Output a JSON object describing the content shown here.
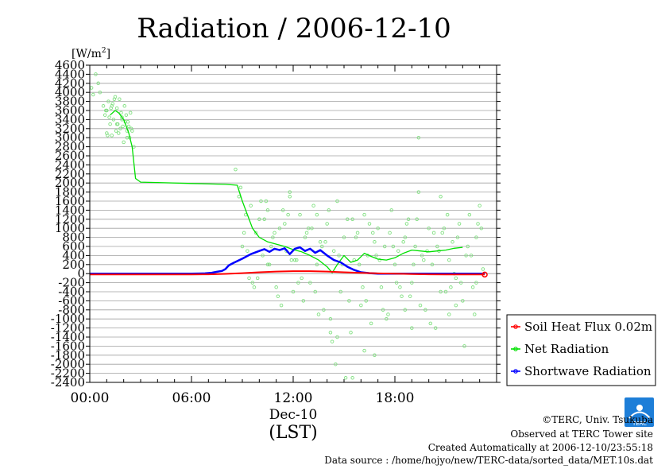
{
  "chart_data": {
    "type": "line",
    "title": "Radiation / 2006-12-10",
    "ylabel": "[W/m",
    "ylabel_sup": "2",
    "ylabel_close": "]",
    "ylim": [
      -2400,
      4600
    ],
    "yticks": [
      4600,
      4400,
      4200,
      4000,
      3800,
      3600,
      3400,
      3200,
      3000,
      2800,
      2600,
      2400,
      2200,
      2000,
      1800,
      1600,
      1400,
      1200,
      1000,
      800,
      600,
      400,
      200,
      0,
      -200,
      -400,
      -600,
      -800,
      -1000,
      -1200,
      -1400,
      -1600,
      -1800,
      -2000,
      -2200,
      -2400
    ],
    "ytick_labels": [
      "4600",
      "4400",
      "4200",
      "4000",
      "3800",
      "3600",
      "3400",
      "3200",
      "3000",
      "2800",
      "2600",
      "2400",
      "2200",
      "2000",
      "1800",
      "1600",
      "1400",
      "1200",
      "1000",
      "800",
      "600",
      "400",
      "200",
      "0",
      "-200",
      "-400",
      "-600",
      "-800",
      "-1000",
      "-1200",
      "-1400",
      "-1600",
      "-1800",
      "-2000",
      "-2200",
      "-2400"
    ],
    "xlim": [
      0,
      24
    ],
    "xticks": [
      0,
      6,
      12,
      18
    ],
    "xtick_labels": [
      "00:00",
      "06:00",
      "12:00",
      "18:00"
    ],
    "xdate_label": "Dec-10",
    "xlabel": "(LST)",
    "grid": true,
    "legend_position": "right",
    "series": [
      {
        "name": "Soil Heat Flux 0.02m",
        "color": "#ff0000",
        "x": [
          0,
          2,
          4,
          6,
          7,
          8,
          9,
          10,
          11,
          12,
          13,
          14,
          15,
          16,
          17,
          18,
          19,
          20,
          21,
          22,
          23,
          23.3
        ],
        "y": [
          -20,
          -20,
          -20,
          -20,
          -15,
          -5,
          10,
          30,
          45,
          55,
          55,
          45,
          30,
          15,
          5,
          0,
          -10,
          -15,
          -20,
          -20,
          -20,
          -20
        ]
      },
      {
        "name": "Net Radiation",
        "color": "#00e000",
        "x": [
          1.2,
          1.5,
          1.7,
          2.0,
          2.3,
          2.5,
          2.7,
          3.0,
          4.0,
          6.0,
          8.0,
          8.7,
          9.0,
          9.3,
          9.6,
          10.0,
          10.5,
          11.0,
          11.5,
          12.0,
          12.5,
          13.0,
          13.5,
          14.0,
          14.3,
          14.6,
          15.0,
          15.4,
          15.8,
          16.2,
          16.6,
          17.0,
          17.5,
          18.0,
          18.5,
          19.0,
          19.5,
          20.0,
          20.5,
          21.0,
          21.5,
          22.0
        ],
        "y": [
          3500,
          3600,
          3550,
          3400,
          3100,
          2800,
          2100,
          2020,
          2010,
          1990,
          1970,
          1950,
          1600,
          1300,
          1000,
          800,
          700,
          650,
          600,
          530,
          480,
          400,
          300,
          150,
          20,
          200,
          400,
          250,
          300,
          450,
          380,
          320,
          300,
          350,
          450,
          520,
          500,
          480,
          500,
          520,
          560,
          580
        ]
      },
      {
        "name": "Shortwave Radiation",
        "color": "#0000ff",
        "x": [
          0,
          6,
          6.8,
          7.2,
          7.5,
          7.8,
          8.0,
          8.2,
          8.5,
          9.0,
          9.5,
          10.0,
          10.3,
          10.6,
          10.9,
          11.2,
          11.5,
          11.8,
          12.1,
          12.4,
          12.7,
          13.0,
          13.3,
          13.6,
          14.0,
          14.4,
          14.8,
          15.2,
          15.6,
          16.0,
          16.5,
          17.0,
          18.0,
          20.0,
          22.0,
          23.3
        ],
        "y": [
          0,
          0,
          5,
          20,
          40,
          60,
          100,
          180,
          240,
          330,
          430,
          500,
          540,
          480,
          550,
          520,
          560,
          430,
          550,
          580,
          500,
          550,
          460,
          520,
          400,
          300,
          250,
          150,
          80,
          30,
          10,
          0,
          0,
          0,
          0,
          0
        ]
      }
    ],
    "scatter_note": "",
    "scatter": {
      "color": "#80e080",
      "x": [
        0.1,
        0.2,
        0.35,
        0.5,
        0.6,
        0.8,
        0.9,
        1.0,
        1.1,
        1.2,
        1.3,
        1.4,
        1.5,
        1.6,
        1.7,
        1.8,
        1.9,
        2.0,
        2.1,
        2.2,
        2.3,
        2.4,
        2.5,
        2.6,
        1.05,
        1.25,
        1.45,
        1.65,
        1.85,
        2.05,
        2.25,
        2.45,
        0.95,
        1.15,
        1.35,
        1.55,
        1.75,
        1.95,
        2.15,
        2.35,
        1.0,
        1.3,
        1.6,
        1.9,
        2.2,
        8.6,
        8.8,
        9.0,
        9.2,
        9.4,
        9.6,
        9.8,
        10.0,
        10.2,
        10.4,
        10.6,
        10.8,
        11.0,
        11.2,
        11.4,
        11.6,
        11.8,
        12.0,
        12.2,
        12.4,
        12.6,
        12.8,
        13.0,
        13.2,
        13.4,
        13.6,
        13.8,
        14.0,
        14.2,
        14.4,
        14.6,
        14.8,
        15.0,
        15.2,
        15.4,
        15.6,
        15.8,
        16.0,
        16.2,
        16.4,
        16.6,
        16.8,
        17.0,
        17.2,
        17.4,
        17.6,
        17.8,
        18.0,
        18.2,
        18.4,
        18.6,
        18.8,
        19.0,
        19.2,
        19.4,
        19.6,
        19.8,
        20.0,
        20.2,
        20.4,
        20.6,
        20.8,
        21.0,
        21.2,
        21.4,
        21.6,
        21.8,
        22.0,
        22.2,
        22.4,
        22.6,
        22.8,
        23.0,
        23.2,
        9.1,
        9.5,
        9.9,
        10.3,
        10.7,
        11.1,
        11.5,
        11.9,
        12.3,
        12.7,
        13.1,
        13.5,
        13.9,
        14.3,
        14.7,
        15.1,
        15.5,
        15.9,
        16.3,
        16.7,
        17.1,
        17.5,
        17.9,
        18.3,
        18.7,
        19.1,
        19.5,
        19.9,
        20.3,
        20.7,
        21.1,
        21.5,
        21.9,
        22.3,
        22.7,
        23.1,
        9.3,
        9.7,
        10.1,
        10.5,
        10.9,
        11.3,
        11.7,
        12.1,
        12.5,
        12.9,
        13.3,
        13.7,
        14.1,
        14.5,
        14.9,
        15.3,
        15.7,
        16.1,
        16.5,
        16.9,
        17.3,
        17.7,
        18.1,
        18.5,
        18.9,
        19.3,
        19.7,
        20.1,
        20.5,
        20.9,
        21.3,
        21.7,
        22.1,
        22.5,
        22.9,
        8.9,
        10.5,
        11.8,
        13.4,
        14.6,
        15.5,
        16.8,
        18.6,
        19.4,
        20.7,
        21.6,
        22.8,
        14.2,
        16.2,
        19.0,
        21.2
      ],
      "y": [
        4100,
        3950,
        4400,
        4200,
        4000,
        3700,
        3500,
        3600,
        3800,
        3300,
        3700,
        3400,
        3900,
        3650,
        3100,
        3200,
        3450,
        2900,
        3350,
        3000,
        3250,
        3550,
        3150,
        2800,
        3050,
        3650,
        3850,
        3300,
        3550,
        3700,
        3350,
        3200,
        3600,
        3450,
        3750,
        3150,
        3850,
        3250,
        3500,
        3000,
        3100,
        3050,
        3300,
        3400,
        3150,
        2300,
        1700,
        600,
        1300,
        -100,
        -200,
        900,
        1200,
        400,
        1600,
        200,
        800,
        -300,
        1000,
        1400,
        500,
        1700,
        -400,
        300,
        1300,
        -600,
        900,
        -200,
        1500,
        200,
        700,
        -800,
        1100,
        -1000,
        500,
        1600,
        -400,
        800,
        1200,
        -1300,
        300,
        900,
        -700,
        1300,
        400,
        -1100,
        700,
        1000,
        -300,
        600,
        -900,
        1400,
        200,
        500,
        -500,
        800,
        1200,
        -200,
        600,
        3000,
        400,
        -800,
        1000,
        200,
        -1200,
        500,
        900,
        -400,
        300,
        700,
        -100,
        1100,
        -600,
        400,
        1300,
        -300,
        800,
        1500,
        100,
        900,
        1500,
        -100,
        1200,
        600,
        -500,
        1100,
        300,
        -200,
        800,
        1000,
        -900,
        700,
        -1500,
        400,
        -2300,
        1200,
        200,
        -600,
        900,
        300,
        -1000,
        600,
        -300,
        1100,
        200,
        -700,
        500,
        900,
        -400,
        1300,
        0,
        -200,
        600,
        -900,
        1000,
        500,
        -300,
        1600,
        200,
        900,
        -700,
        1300,
        300,
        -100,
        1000,
        -400,
        600,
        1400,
        -2000,
        200,
        -600,
        800,
        -300,
        1100,
        400,
        -800,
        900,
        -200,
        700,
        -500,
        1200,
        300,
        -1100,
        600,
        1000,
        -300,
        800,
        -1600,
        400,
        1100,
        1900,
        1400,
        1800,
        1300,
        -1400,
        -2300,
        -1800,
        -800,
        1800,
        1700,
        -700,
        -200,
        -1300,
        -1700,
        -1200,
        -900
      ]
    }
  },
  "footer": {
    "copyright": "©TERC, Univ. Tsukuba",
    "observed": "Observed at TERC Tower site",
    "created": "Created Automatically at 2006-12-10/23:55:18",
    "source": "Data source : /home/hojyo/new/TERC-data/sorted_data/MET.10s.dat",
    "logo_text": "TERC"
  }
}
